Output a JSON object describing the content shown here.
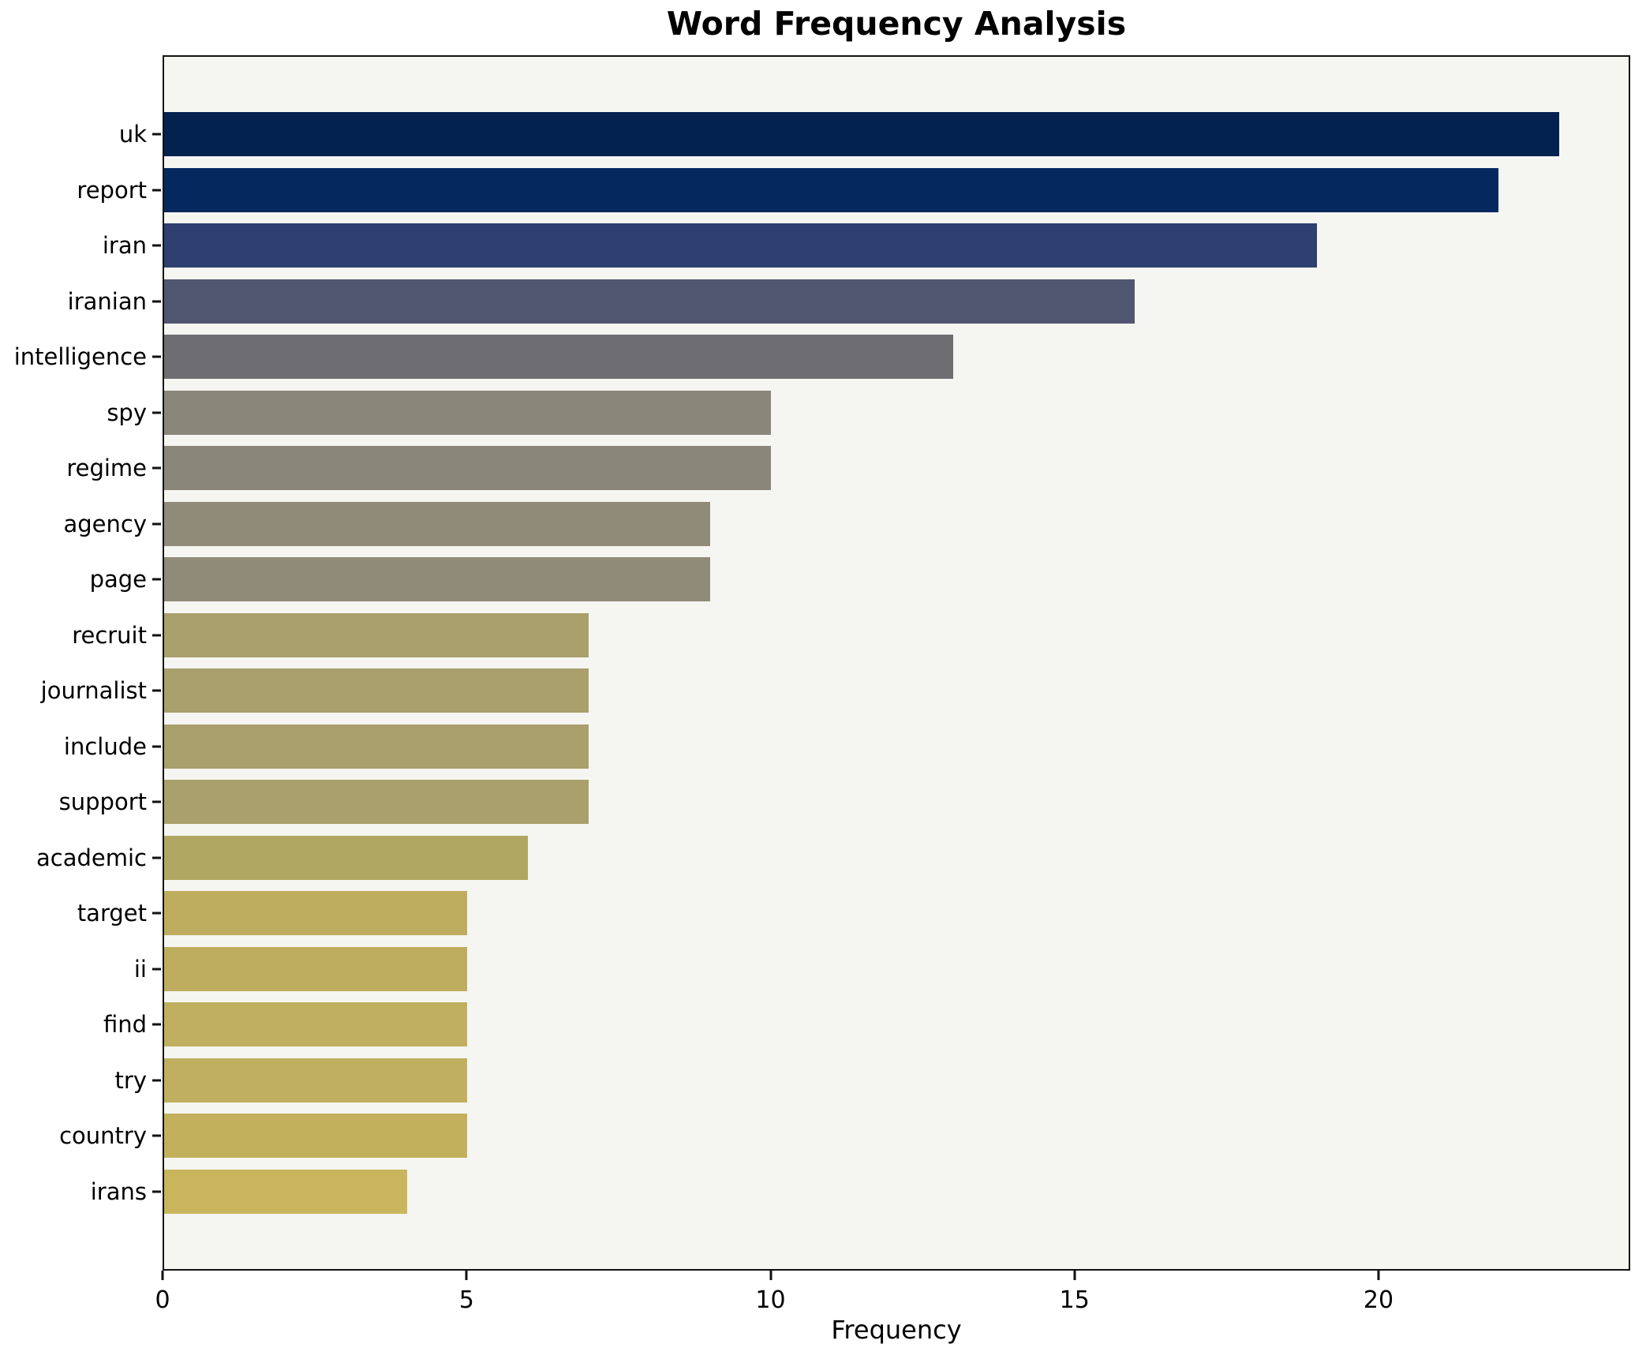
{
  "chart_data": {
    "type": "bar",
    "orientation": "horizontal",
    "title": "Word Frequency Analysis",
    "xlabel": "Frequency",
    "ylabel": "",
    "categories": [
      "uk",
      "report",
      "iran",
      "iranian",
      "intelligence",
      "spy",
      "regime",
      "agency",
      "page",
      "recruit",
      "journalist",
      "include",
      "support",
      "academic",
      "target",
      "ii",
      "find",
      "try",
      "country",
      "irans"
    ],
    "values": [
      23,
      22,
      19,
      16,
      13,
      10,
      10,
      9,
      9,
      7,
      7,
      7,
      7,
      6,
      5,
      5,
      5,
      5,
      5,
      4
    ],
    "bar_colors": [
      "#04224f",
      "#05295f",
      "#2e4070",
      "#515670",
      "#6e6e72",
      "#8a877a",
      "#8a877a",
      "#908b79",
      "#908b79",
      "#a9a06b",
      "#a9a06b",
      "#a9a06b",
      "#a9a06b",
      "#b0a763",
      "#bead5f",
      "#bead5f",
      "#c0af5e",
      "#c0af5e",
      "#c2b05d",
      "#c9b55b"
    ],
    "xlim": [
      0,
      24.14
    ],
    "xticks": [
      0,
      5,
      10,
      15,
      20
    ],
    "grid": false,
    "legend": false,
    "plot_background": "#f5f5f2",
    "figure_background": "#ffffff",
    "colormap_note": "dark navy to khaki gradient (cividis-style), darkest = highest frequency"
  }
}
